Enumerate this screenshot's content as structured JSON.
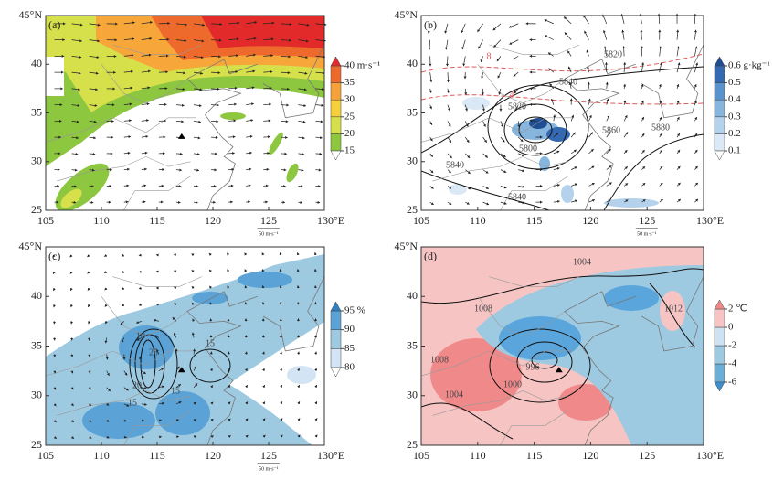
{
  "x_axis": {
    "lim": [
      105,
      130
    ],
    "ticks": [
      105,
      110,
      115,
      120,
      125,
      {
        "value": 130,
        "label": "130°E"
      }
    ]
  },
  "y_axis": {
    "lim": [
      25,
      45
    ],
    "ticks": [
      25,
      30,
      35,
      40,
      {
        "value": 45,
        "label": "45°N"
      }
    ]
  },
  "panels": [
    {
      "label": "(a)",
      "vector_scale": "50 m·s⁻¹",
      "colorbar": {
        "ticks": [
          {
            "value": 40,
            "label": "40 m·s⁻¹"
          },
          35,
          30,
          25,
          20,
          15
        ],
        "colors": [
          "#ffffff",
          "#8dc63f",
          "#d6e04a",
          "#f7cf3c",
          "#f5a13a",
          "#ee6a2c",
          "#e22a2a"
        ]
      },
      "contour_labels": []
    },
    {
      "label": "(b)",
      "vector_scale": "50 m·s⁻¹",
      "colorbar": {
        "ticks": [
          {
            "value": 0.6,
            "label": "0.6 g·kg⁻¹"
          },
          0.5,
          0.4,
          0.3,
          0.2,
          0.1
        ],
        "colors": [
          "#ffffff",
          "#dbe8f5",
          "#b5d2ec",
          "#86b5de",
          "#5a93cc",
          "#3468b0",
          "#1f4d92"
        ]
      },
      "contour_labels": [
        5820,
        5840,
        5820,
        5800,
        5860,
        5880,
        5840,
        5840,
        8,
        4
      ]
    },
    {
      "label": "(c)",
      "vector_scale": "50 m·s⁻¹",
      "colorbar": {
        "ticks": [
          {
            "value": 95,
            "label": "95 %"
          },
          90,
          85,
          80
        ],
        "colors": [
          "#ffffff",
          "#d3e5f4",
          "#9ecae1",
          "#5ba3d6",
          "#2f7fc1"
        ]
      },
      "contour_labels": [
        10,
        25,
        15,
        20,
        15,
        15
      ]
    },
    {
      "label": "(d)",
      "vector_scale": null,
      "colorbar": {
        "ticks": [
          {
            "value": 2,
            "label": "2 ℃"
          },
          0,
          -2,
          -4,
          -6
        ],
        "colors": [
          "#3d8fd1",
          "#6baed6",
          "#9ecae1",
          "#cfe2f2",
          "#f7c4c4",
          "#f08a8a"
        ]
      },
      "contour_labels": [
        1004,
        1008,
        1012,
        1008,
        996,
        1000,
        1004
      ]
    }
  ]
}
